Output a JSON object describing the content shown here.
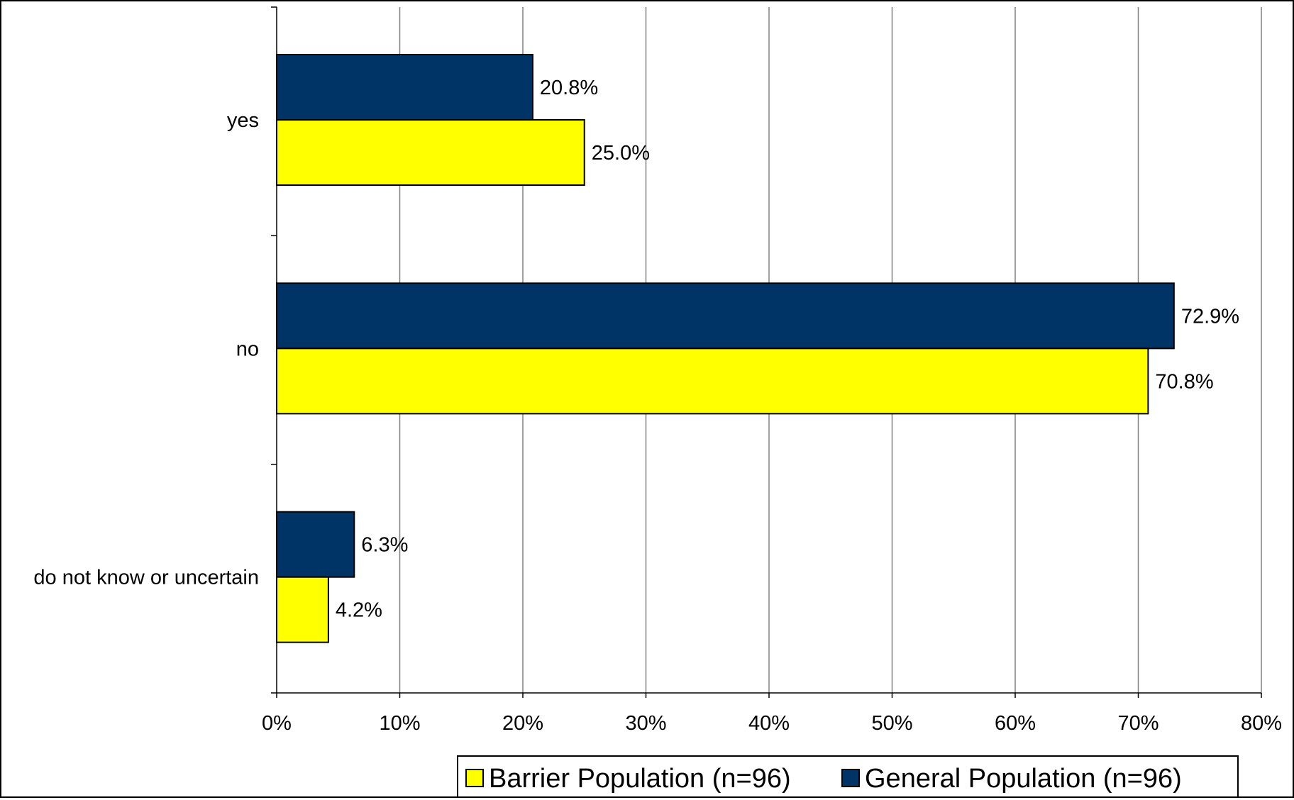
{
  "chart_data": {
    "type": "bar",
    "orientation": "horizontal",
    "categories": [
      "yes",
      "no",
      "do not know or uncertain"
    ],
    "series": [
      {
        "name": "General Population (n=96)",
        "values": [
          20.8,
          72.9,
          6.3
        ],
        "labels": [
          "20.8%",
          "72.9%",
          "6.3%"
        ],
        "color": "#003366"
      },
      {
        "name": "Barrier Population (n=96)",
        "values": [
          25.0,
          70.8,
          4.2
        ],
        "labels": [
          "25.0%",
          "70.8%",
          "4.2%"
        ],
        "color": "#FFFF00"
      }
    ],
    "legend_order": [
      "Barrier Population (n=96)",
      "General Population (n=96)"
    ],
    "x_ticks": [
      "0%",
      "10%",
      "20%",
      "30%",
      "40%",
      "50%",
      "60%",
      "70%",
      "80%"
    ],
    "xlim": [
      0,
      80
    ],
    "grid": true,
    "legend_position": "bottom-right",
    "title": "",
    "xlabel": "",
    "ylabel": ""
  }
}
